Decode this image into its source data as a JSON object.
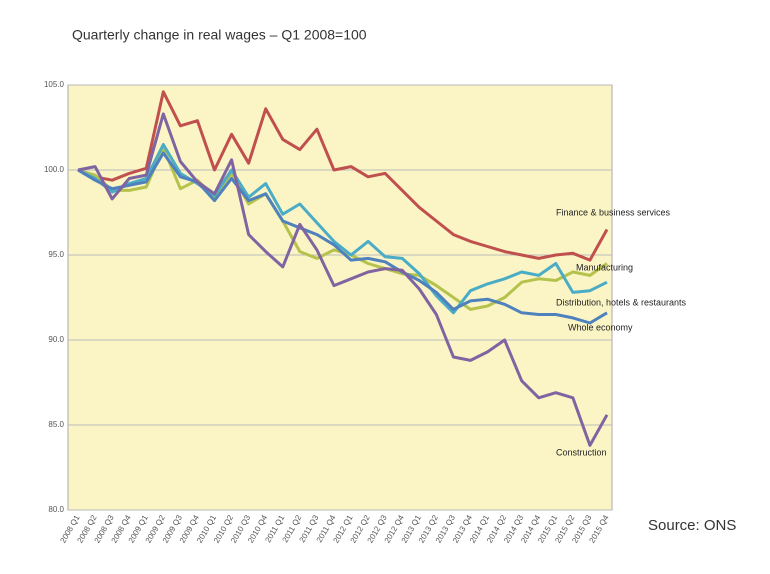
{
  "chart_data": {
    "type": "line",
    "title": "Quarterly change in real wages – Q1 2008=100",
    "source": "Source: ONS",
    "categories": [
      "2008 Q1",
      "2008 Q2",
      "2008 Q3",
      "2008 Q4",
      "2009 Q1",
      "2009 Q2",
      "2009 Q3",
      "2009 Q4",
      "2010 Q1",
      "2010 Q2",
      "2010 Q3",
      "2010 Q4",
      "2011 Q1",
      "2011 Q2",
      "2011 Q3",
      "2011 Q4",
      "2012 Q1",
      "2012 Q2",
      "2012 Q3",
      "2012 Q4",
      "2013 Q1",
      "2013 Q2",
      "2013 Q3",
      "2013 Q4",
      "2014 Q1",
      "2014 Q2",
      "2014 Q3",
      "2014 Q4",
      "2015 Q1",
      "2015 Q2",
      "2015 Q3",
      "2015 Q4"
    ],
    "series": [
      {
        "name": "Finance & business services",
        "color": "#c0504d",
        "values": [
          100,
          99.6,
          99.4,
          99.8,
          100.1,
          104.6,
          102.6,
          102.9,
          100.0,
          102.1,
          100.4,
          103.6,
          101.8,
          101.2,
          102.4,
          100.0,
          100.2,
          99.6,
          99.8,
          98.8,
          97.8,
          97.0,
          96.2,
          95.8,
          95.5,
          95.2,
          95.0,
          94.8,
          95.0,
          95.1,
          94.7,
          96.5
        ]
      },
      {
        "name": "Manufacturing",
        "color": "#b5c24c",
        "values": [
          100,
          99.7,
          98.8,
          98.8,
          99.0,
          101.3,
          98.9,
          99.4,
          98.4,
          99.8,
          98.0,
          98.6,
          97.0,
          95.2,
          94.8,
          95.3,
          95.0,
          94.5,
          94.2,
          93.9,
          93.8,
          93.2,
          92.5,
          91.8,
          92.0,
          92.5,
          93.4,
          93.6,
          93.5,
          94.0,
          93.8,
          94.5
        ]
      },
      {
        "name": "Distribution, hotels & restaurants",
        "color": "#4bacc6",
        "values": [
          100,
          99.5,
          98.7,
          99.2,
          99.5,
          101.5,
          99.8,
          99.2,
          98.5,
          100.0,
          98.4,
          99.2,
          97.4,
          98.0,
          96.9,
          95.8,
          95.0,
          95.8,
          94.9,
          94.8,
          93.9,
          92.6,
          91.6,
          92.9,
          93.3,
          93.6,
          94.0,
          93.8,
          94.5,
          92.8,
          92.9,
          93.4
        ]
      },
      {
        "name": "Whole economy",
        "color": "#4f81bd",
        "values": [
          100,
          99.4,
          98.9,
          99.1,
          99.3,
          101.0,
          99.6,
          99.3,
          98.2,
          99.5,
          98.2,
          98.6,
          97.0,
          96.6,
          96.2,
          95.6,
          94.7,
          94.8,
          94.6,
          94.0,
          93.5,
          92.8,
          91.8,
          92.3,
          92.4,
          92.1,
          91.6,
          91.5,
          91.5,
          91.3,
          91.0,
          91.6
        ]
      },
      {
        "name": "Construction",
        "color": "#8064a2",
        "values": [
          100,
          100.2,
          98.3,
          99.5,
          99.7,
          103.3,
          100.5,
          99.3,
          98.6,
          100.6,
          96.2,
          95.2,
          94.3,
          96.8,
          95.3,
          93.2,
          93.6,
          94.0,
          94.2,
          94.1,
          93.0,
          91.5,
          89.0,
          88.8,
          89.3,
          90.0,
          87.6,
          86.6,
          86.9,
          86.6,
          83.8,
          85.6
        ]
      }
    ],
    "ylim": [
      80,
      105
    ],
    "yticks": [
      {
        "value": 80,
        "label": "80.0"
      },
      {
        "value": 85,
        "label": "85.0"
      },
      {
        "value": 90,
        "label": "90.0"
      },
      {
        "value": 95,
        "label": "95.0"
      },
      {
        "value": 100,
        "label": "100.0"
      },
      {
        "value": 105,
        "label": "105.0"
      }
    ],
    "grid": true
  }
}
